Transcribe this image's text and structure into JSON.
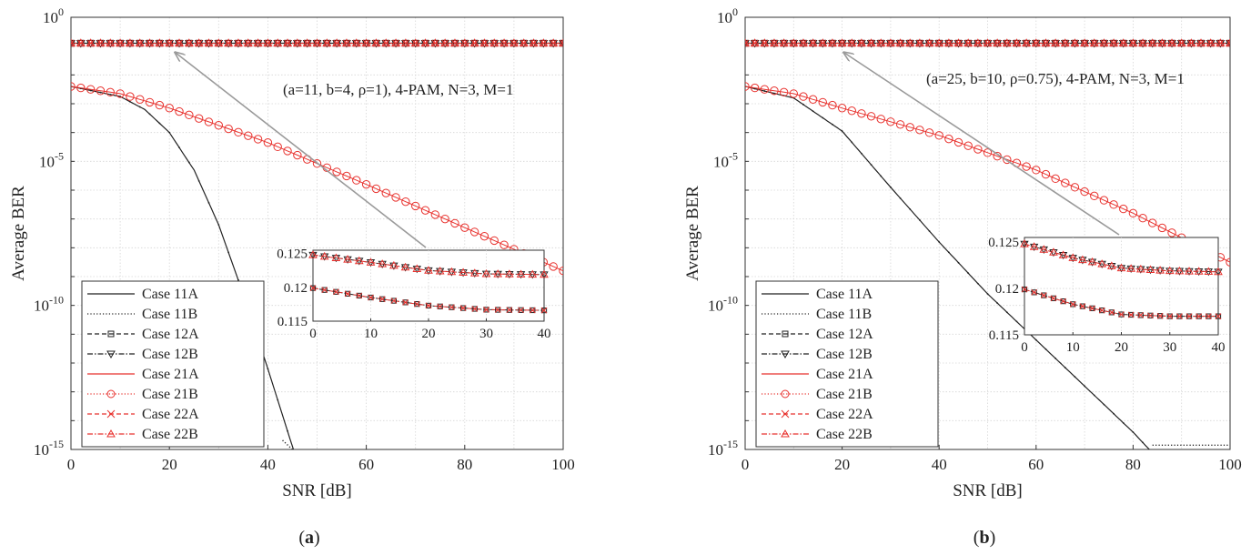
{
  "chart_data": [
    {
      "type": "line",
      "panel_label": "(a)",
      "xlabel": "SNR [dB]",
      "ylabel": "Average BER",
      "xlim": [
        0,
        100
      ],
      "ylim_exp": [
        -15,
        0
      ],
      "x_ticks": [
        "0",
        "20",
        "40",
        "60",
        "80",
        "100"
      ],
      "y_ticks": [
        {
          "base": "10",
          "exp": "0"
        },
        {
          "base": "10",
          "exp": "-5"
        },
        {
          "base": "10",
          "exp": "-10"
        },
        {
          "base": "10",
          "exp": "-15"
        }
      ],
      "annotation": "(a=11, b=4, ρ=1), 4-PAM, N=3, M=1",
      "legend": [
        "Case 11A",
        "Case 11B",
        "Case 12A",
        "Case 12B",
        "Case 21A",
        "Case 21B",
        "Case 22A",
        "Case 22B"
      ],
      "series_desc": {
        "top_flat_log10": -0.9,
        "case2_log10": [
          [
            0,
            -2.4
          ],
          [
            10,
            -2.65
          ],
          [
            20,
            -3.15
          ],
          [
            40,
            -4.35
          ],
          [
            60,
            -5.8
          ],
          [
            80,
            -7.3
          ],
          [
            100,
            -8.8
          ]
        ],
        "case1_log10": [
          [
            0,
            -2.4
          ],
          [
            10,
            -2.75
          ],
          [
            15,
            -3.2
          ],
          [
            20,
            -4.0
          ],
          [
            25,
            -5.3
          ],
          [
            30,
            -7.2
          ],
          [
            35,
            -9.6
          ],
          [
            40,
            -12.2
          ],
          [
            45,
            -14.9
          ],
          [
            47,
            -16
          ]
        ],
        "case1b_floor_log10": -15.05,
        "case1b_floor_start_x": 47
      },
      "inset": {
        "xlim": [
          0,
          40
        ],
        "ylim": [
          0.115,
          0.1255
        ],
        "x_ticks": [
          "0",
          "10",
          "20",
          "30",
          "40"
        ],
        "y_ticks": [
          "0.125",
          "0.12",
          "0.115"
        ],
        "curve_B": [
          [
            0,
            0.1248
          ],
          [
            10,
            0.1237
          ],
          [
            20,
            0.1225
          ],
          [
            30,
            0.122
          ],
          [
            40,
            0.1219
          ]
        ],
        "curve_A": [
          [
            0,
            0.1199
          ],
          [
            10,
            0.1185
          ],
          [
            20,
            0.1173
          ],
          [
            30,
            0.1167
          ],
          [
            40,
            0.1166
          ]
        ]
      }
    },
    {
      "type": "line",
      "panel_label": "(b)",
      "xlabel": "SNR [dB]",
      "ylabel": "Average BER",
      "xlim": [
        0,
        100
      ],
      "ylim_exp": [
        -15,
        0
      ],
      "x_ticks": [
        "0",
        "20",
        "40",
        "60",
        "80",
        "100"
      ],
      "y_ticks": [
        {
          "base": "10",
          "exp": "0"
        },
        {
          "base": "10",
          "exp": "-5"
        },
        {
          "base": "10",
          "exp": "-10"
        },
        {
          "base": "10",
          "exp": "-15"
        }
      ],
      "annotation": "(a=25, b=10, ρ=0.75), 4-PAM, N=3, M=1",
      "legend": [
        "Case 11A",
        "Case 11B",
        "Case 12A",
        "Case 12B",
        "Case 21A",
        "Case 21B",
        "Case 22A",
        "Case 22B"
      ],
      "series_desc": {
        "top_flat_log10": -0.9,
        "case2_log10": [
          [
            0,
            -2.4
          ],
          [
            10,
            -2.65
          ],
          [
            20,
            -3.15
          ],
          [
            40,
            -4.1
          ],
          [
            60,
            -5.3
          ],
          [
            80,
            -6.8
          ],
          [
            100,
            -8.5
          ]
        ],
        "case1_log10": [
          [
            0,
            -2.4
          ],
          [
            10,
            -2.8
          ],
          [
            20,
            -3.95
          ],
          [
            30,
            -5.9
          ],
          [
            40,
            -7.8
          ],
          [
            50,
            -9.6
          ],
          [
            60,
            -11.2
          ],
          [
            70,
            -12.8
          ],
          [
            80,
            -14.4
          ],
          [
            85,
            -15.3
          ]
        ],
        "case1b_floor_log10": -14.85,
        "case1b_floor_start_x": 88
      },
      "inset": {
        "xlim": [
          0,
          40
        ],
        "ylim": [
          0.115,
          0.1255
        ],
        "x_ticks": [
          "0",
          "10",
          "20",
          "30",
          "40"
        ],
        "y_ticks": [
          "0.125",
          "0.12",
          "0.115"
        ],
        "curve_B": [
          [
            0,
            0.1248
          ],
          [
            10,
            0.1233
          ],
          [
            20,
            0.1222
          ],
          [
            30,
            0.1219
          ],
          [
            40,
            0.1218
          ]
        ],
        "curve_A": [
          [
            0,
            0.1199
          ],
          [
            10,
            0.1183
          ],
          [
            20,
            0.1172
          ],
          [
            30,
            0.117
          ],
          [
            40,
            0.117
          ]
        ]
      }
    }
  ],
  "colors": {
    "black": "#222222",
    "red": "#e8322e",
    "grid": "#d6d6d6",
    "arrow": "#9a9a9a"
  }
}
